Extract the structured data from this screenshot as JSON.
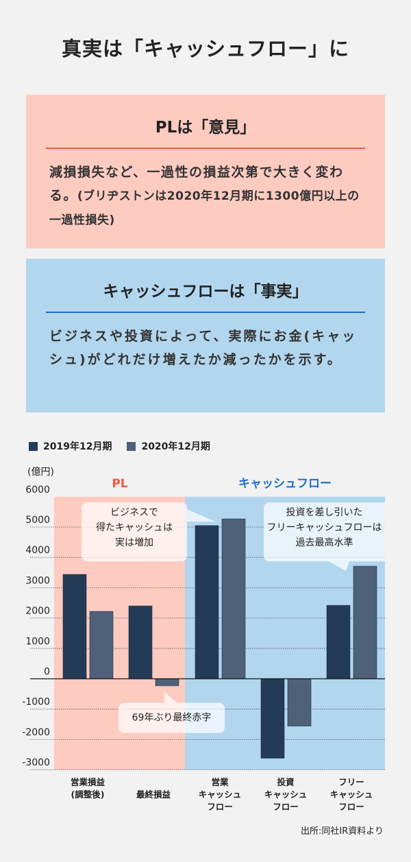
{
  "title": "真実は「キャッシュフロー」に",
  "pl_card": {
    "title": "PLは「意見」",
    "body_main": "減損損失など、一過性の損益次第で大きく変わる。",
    "body_note": "(ブリヂストンは2020年12月期に1300億円以上の一過性損失)",
    "bg_color": "#fecbc1",
    "rule_color": "#f05a3c"
  },
  "cf_card": {
    "title": "キャッシュフローは「事実」",
    "body": "ビジネスや投資によって、実際にお金(キャッシュ)がどれだけ増えたか減ったかを示す。",
    "bg_color": "#b2d6ee",
    "rule_color": "#1a6fc4"
  },
  "chart_data": {
    "type": "bar",
    "unit_label": "(億円)",
    "categories": [
      "営業損益\n(調整後)",
      "最終損益",
      "営業\nキャッシュ\nフロー",
      "投資\nキャッシュ\nフロー",
      "フリー\nキャッシュ\nフロー"
    ],
    "series": [
      {
        "name": "2019年12月期",
        "color": "#243b58",
        "values": [
          3440,
          2400,
          5050,
          -2620,
          2420
        ]
      },
      {
        "name": "2020年12月期",
        "color": "#4e6178",
        "values": [
          2220,
          -230,
          5270,
          -1560,
          3710
        ]
      }
    ],
    "ylim": [
      -3000,
      6000
    ],
    "yticks": [
      6000,
      5000,
      4000,
      3000,
      2000,
      1000,
      0,
      -1000,
      -2000,
      -3000
    ],
    "grid": true,
    "legend": "top-left",
    "sections": [
      {
        "label": "PL",
        "color": "#f05a3c",
        "bg": "#fecbc1"
      },
      {
        "label": "キャッシュフロー",
        "color": "#1a6fc4",
        "bg": "#b2d6ee"
      }
    ],
    "annotations": [
      "ビジネスで\n得たキャッシュは\n実は増加",
      "投資を差し引いた\nフリーキャッシュフローは\n過去最高水準",
      "69年ぶり最終赤字"
    ],
    "source": "出所:同社IR資料より"
  }
}
